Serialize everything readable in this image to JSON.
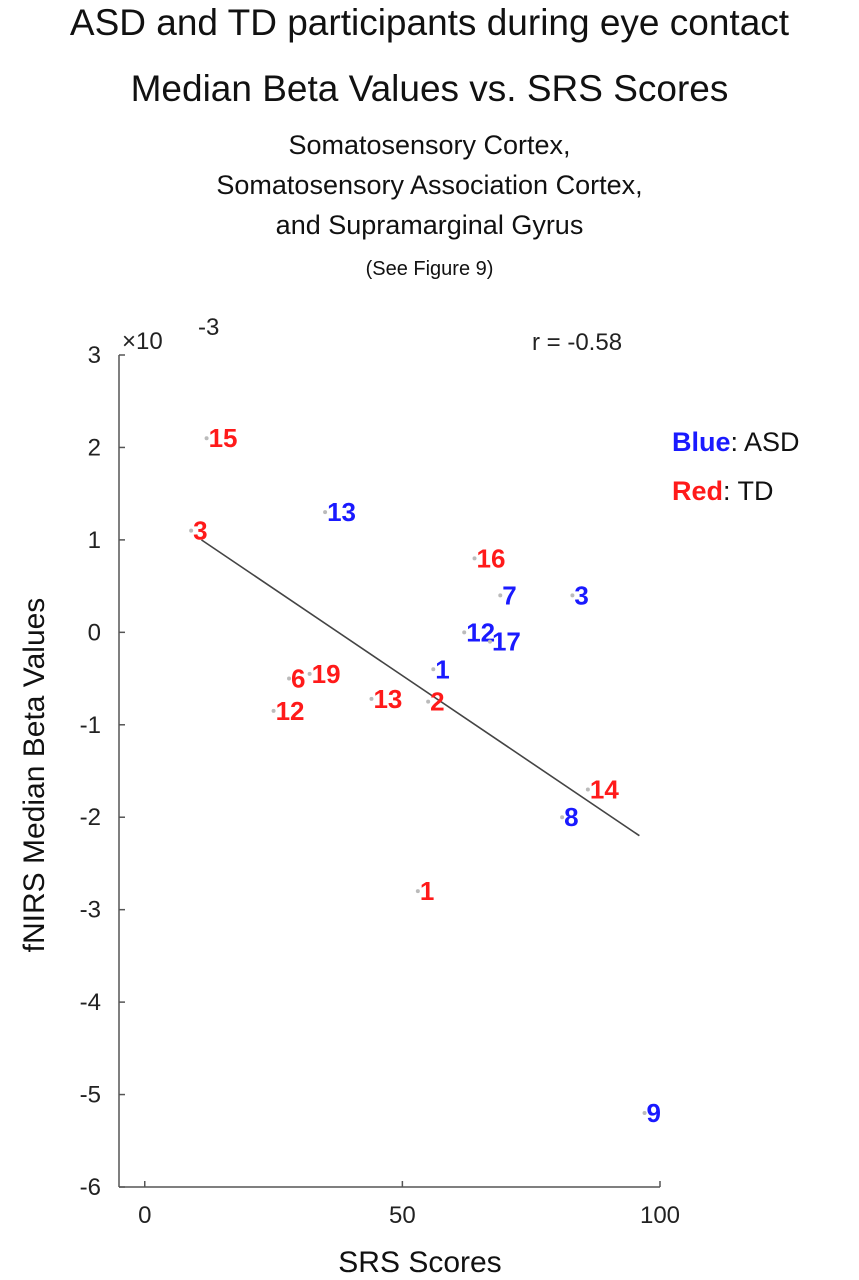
{
  "titles": {
    "line1": "ASD and TD participants during eye contact",
    "line2": "Median Beta Values vs. SRS Scores",
    "line3": "Somatosensory Cortex,",
    "line4": "Somatosensory Association Cortex,",
    "line5": "and Supramarginal Gyrus",
    "line6": "(See Figure 9)"
  },
  "chart_data": {
    "type": "scatter",
    "xlabel": "SRS Scores",
    "ylabel": "fNIRS Median Beta Values",
    "y_multiplier": "×10",
    "y_multiplier_exp": "-3",
    "correlation": "r = -0.58",
    "xlim": [
      -5,
      100
    ],
    "ylim": [
      -6,
      3
    ],
    "xticks": [
      0,
      50,
      100
    ],
    "yticks": [
      3,
      2,
      1,
      0,
      -1,
      -2,
      -3,
      -4,
      -5,
      -6
    ],
    "legend": {
      "position": "top-right",
      "asd_word": "Blue",
      "asd_text": ": ASD",
      "td_word": "Red",
      "td_text": ": TD"
    },
    "colors": {
      "ASD": "#1a1aff",
      "TD": "#ff1a1a",
      "fit": "#444444"
    },
    "series": [
      {
        "name": "ASD",
        "points": [
          {
            "label": "13",
            "x": 35,
            "y": 1.3
          },
          {
            "label": "7",
            "x": 69,
            "y": 0.4
          },
          {
            "label": "3",
            "x": 83,
            "y": 0.4
          },
          {
            "label": "12",
            "x": 62,
            "y": 0.0
          },
          {
            "label": "17",
            "x": 67,
            "y": -0.1
          },
          {
            "label": "1",
            "x": 56,
            "y": -0.4
          },
          {
            "label": "8",
            "x": 81,
            "y": -2.0
          },
          {
            "label": "9",
            "x": 97,
            "y": -5.2
          }
        ]
      },
      {
        "name": "TD",
        "points": [
          {
            "label": "15",
            "x": 12,
            "y": 2.1
          },
          {
            "label": "3",
            "x": 9,
            "y": 1.1
          },
          {
            "label": "16",
            "x": 64,
            "y": 0.8
          },
          {
            "label": "6",
            "x": 28,
            "y": -0.5
          },
          {
            "label": "19",
            "x": 32,
            "y": -0.45
          },
          {
            "label": "12",
            "x": 25,
            "y": -0.85
          },
          {
            "label": "13",
            "x": 44,
            "y": -0.72
          },
          {
            "label": "2",
            "x": 55,
            "y": -0.75
          },
          {
            "label": "14",
            "x": 86,
            "y": -1.7
          },
          {
            "label": "1",
            "x": 53,
            "y": -2.8
          }
        ]
      }
    ],
    "fit_line": {
      "x": [
        11,
        96
      ],
      "y": [
        1.0,
        -2.2
      ]
    }
  }
}
